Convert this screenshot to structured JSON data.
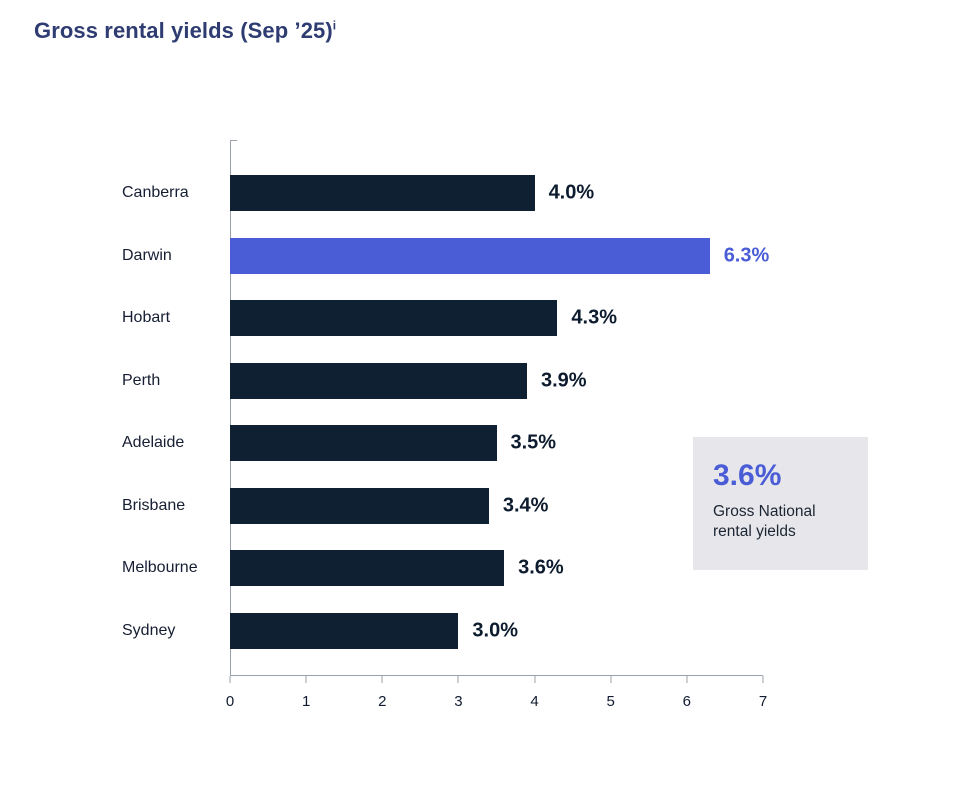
{
  "title": {
    "text": "Gross rental yields (Sep ’25)",
    "superscript": "i"
  },
  "chart_data": {
    "type": "bar",
    "orientation": "horizontal",
    "title": "Gross rental yields (Sep ’25)",
    "categories": [
      "Canberra",
      "Darwin",
      "Hobart",
      "Perth",
      "Adelaide",
      "Brisbane",
      "Melbourne",
      "Sydney"
    ],
    "values": [
      4.0,
      6.3,
      4.3,
      3.9,
      3.5,
      3.4,
      3.6,
      3.0
    ],
    "value_labels": [
      "4.0%",
      "6.3%",
      "4.3%",
      "3.9%",
      "3.5%",
      "3.4%",
      "3.6%",
      "3.0%"
    ],
    "highlight_index": 1,
    "xlim": [
      0,
      7
    ],
    "x_ticks": [
      "0",
      "1",
      "2",
      "3",
      "4",
      "5",
      "6",
      "7"
    ],
    "grid": false,
    "legend": null,
    "bar_color": "#0f2033",
    "highlight_color": "#4a5cd6"
  },
  "callout": {
    "value": "3.6%",
    "label": "Gross National rental yields",
    "background": "#e7e7eb"
  }
}
